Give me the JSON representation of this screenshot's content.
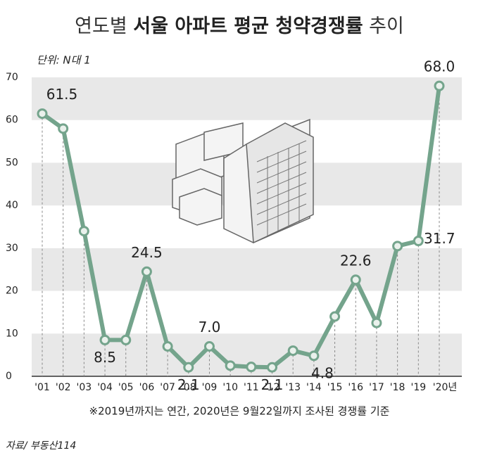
{
  "chart_data": {
    "type": "line",
    "title": [
      "연도별",
      "서울 아파트 평균 청약경쟁률",
      "추이"
    ],
    "unit_label": "단위: N대 1",
    "footnote": "※2019년까지는 연간, 2020년은 9월22일까지 조사된 경쟁률 기준",
    "source": "자료/ 부동산114",
    "categories": [
      "'01",
      "'02",
      "'03",
      "'04",
      "'05",
      "'06",
      "'07",
      "'08",
      "'09",
      "'10",
      "'11",
      "'12",
      "'13",
      "'14",
      "'15",
      "'16",
      "'17",
      "'18",
      "'19",
      "'20년"
    ],
    "series": [
      {
        "name": "평균 청약경쟁률",
        "color": "#74a48c",
        "values": [
          61.5,
          58,
          34,
          8.5,
          8.5,
          24.5,
          7,
          2.1,
          7.0,
          2.5,
          2.2,
          2.1,
          6,
          4.8,
          14,
          22.6,
          12.5,
          30.5,
          31.7,
          68.0
        ],
        "value_labels": [
          "61.5",
          null,
          null,
          "8.5",
          null,
          "24.5",
          null,
          "2.1",
          "7.0",
          null,
          null,
          "2.1",
          null,
          "4.8",
          null,
          "22.6",
          null,
          null,
          "31.7",
          "68.0"
        ]
      }
    ],
    "ylim": [
      0,
      70
    ],
    "yticks": [
      0,
      10,
      20,
      30,
      40,
      50,
      60,
      70
    ],
    "banded_grid": true
  }
}
